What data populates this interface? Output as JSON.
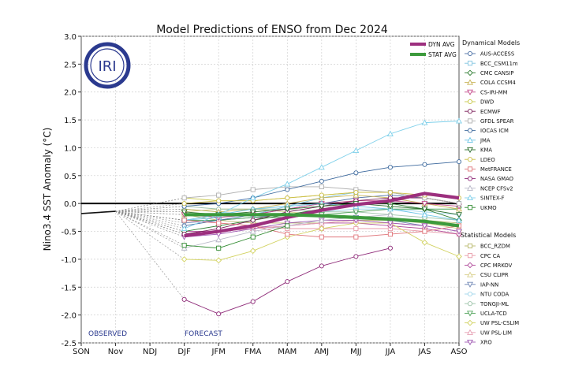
{
  "chart_data": {
    "type": "line",
    "title": "Model Predictions of ENSO from Dec 2024",
    "ylabel": "Nino3.4 SST Anomaly (°C)",
    "xlabel": "",
    "ylim": [
      -2.5,
      3.0
    ],
    "yticks": [
      "-2.5",
      "-2.0",
      "-1.5",
      "-1.0",
      "-0.5",
      "0.0",
      "0.5",
      "1.0",
      "1.5",
      "2.0",
      "2.5",
      "3.0"
    ],
    "categories": [
      "SON",
      "Nov",
      "NDJ",
      "DJF",
      "JFM",
      "FMA",
      "MAM",
      "AMJ",
      "MJJ",
      "JJA",
      "JAS",
      "ASO"
    ],
    "grid": true,
    "observed_label": "OBSERVED",
    "forecast_label": "FORECAST",
    "logo_text": "IRI",
    "observed": [
      -0.18,
      -0.14
    ],
    "avg_series": [
      {
        "name": "DYN AVG",
        "color": "#9c2f7e",
        "values": [
          null,
          null,
          null,
          -0.58,
          -0.5,
          -0.4,
          -0.25,
          -0.12,
          -0.02,
          0.05,
          0.18,
          0.1
        ]
      },
      {
        "name": "STAT AVG",
        "color": "#3c9a3c",
        "values": [
          null,
          null,
          null,
          -0.2,
          -0.2,
          -0.2,
          -0.2,
          -0.22,
          -0.25,
          -0.28,
          -0.32,
          -0.4
        ]
      }
    ],
    "legend_dynamical_title": "Dynamical Models",
    "legend_statistical_title": "Statistical Models",
    "dynamical_series": [
      {
        "name": "AUS-ACCESS",
        "color": "#4a6fa5",
        "marker": "circle",
        "values": [
          null,
          null,
          null,
          -0.4,
          -0.3,
          -0.2,
          -0.1,
          0.0,
          0.1,
          0.15,
          0.1,
          0.0
        ]
      },
      {
        "name": "BCC_CSM11m",
        "color": "#7fc4e0",
        "marker": "square",
        "values": [
          null,
          null,
          null,
          -0.3,
          -0.25,
          -0.2,
          -0.05,
          0.1,
          0.2,
          0.2,
          0.1,
          0.0
        ]
      },
      {
        "name": "CMC CANSIP",
        "color": "#2e7d32",
        "marker": "diamond",
        "values": [
          null,
          null,
          null,
          -0.5,
          -0.4,
          -0.3,
          -0.2,
          -0.1,
          0.0,
          0.0,
          -0.1,
          -0.3
        ]
      },
      {
        "name": "COLA CCSM4",
        "color": "#c9b458",
        "marker": "triangle",
        "values": [
          null,
          null,
          null,
          -0.1,
          -0.15,
          -0.1,
          0.0,
          0.1,
          0.15,
          0.1,
          0.0,
          -0.1
        ]
      },
      {
        "name": "CS-IRI-MM",
        "color": "#c54b8c",
        "marker": "tridown",
        "values": [
          null,
          null,
          null,
          -0.2,
          -0.25,
          -0.2,
          -0.1,
          0.0,
          0.05,
          0.05,
          0.0,
          -0.05
        ]
      },
      {
        "name": "DWD",
        "color": "#c8c84a",
        "marker": "circle",
        "values": [
          null,
          null,
          null,
          0.1,
          0.05,
          0.05,
          0.1,
          0.15,
          0.2,
          0.2,
          0.1,
          0.0
        ]
      },
      {
        "name": "ECMWF",
        "color": "#7b1f5a",
        "marker": "circle",
        "values": [
          null,
          null,
          null,
          -0.55,
          -0.45,
          -0.3,
          -0.15,
          -0.05,
          0.05,
          0.1,
          0.1,
          0.0
        ]
      },
      {
        "name": "GFDL SPEAR",
        "color": "#b0b0b0",
        "marker": "square",
        "values": [
          null,
          null,
          null,
          0.1,
          0.15,
          0.25,
          0.3,
          0.3,
          0.25,
          0.2,
          0.1,
          0.0
        ]
      },
      {
        "name": "IOCAS ICM",
        "color": "#3e6a9e",
        "marker": "circle",
        "values": [
          null,
          null,
          null,
          -0.05,
          0.0,
          0.1,
          0.25,
          0.4,
          0.55,
          0.65,
          0.7,
          0.75
        ]
      },
      {
        "name": "JMA",
        "color": "#6ec6e6",
        "marker": "triangle",
        "values": [
          null,
          null,
          null,
          -0.3,
          -0.2,
          -0.1,
          -0.05,
          0.0,
          -0.05,
          -0.1,
          -0.2,
          -0.3
        ]
      },
      {
        "name": "KMA",
        "color": "#2c6e2c",
        "marker": "tridown",
        "values": [
          null,
          null,
          null,
          -0.15,
          -0.2,
          -0.15,
          -0.1,
          -0.05,
          0.0,
          -0.05,
          -0.1,
          -0.2
        ]
      },
      {
        "name": "LDEO",
        "color": "#cdbf47",
        "marker": "circle",
        "values": [
          null,
          null,
          null,
          0.0,
          0.05,
          0.05,
          0.1,
          0.15,
          0.2,
          0.2,
          0.15,
          0.1
        ]
      },
      {
        "name": "MetFRANCE",
        "color": "#e0787d",
        "marker": "square",
        "values": [
          null,
          null,
          null,
          -0.3,
          -0.35,
          -0.4,
          -0.55,
          -0.6,
          -0.6,
          -0.55,
          -0.5,
          -0.4
        ]
      },
      {
        "name": "NASA GMAO",
        "color": "#8e2a78",
        "marker": "circle",
        "values": [
          null,
          null,
          null,
          -1.72,
          -1.98,
          -1.76,
          -1.4,
          -1.12,
          -0.95,
          -0.8,
          null,
          null
        ]
      },
      {
        "name": "NCEP CFSv2",
        "color": "#b8b8c8",
        "marker": "triangle",
        "values": [
          null,
          null,
          null,
          -0.8,
          -0.65,
          -0.5,
          -0.4,
          -0.3,
          -0.25,
          -0.2,
          null,
          null
        ]
      },
      {
        "name": "SINTEX-F",
        "color": "#7fd0ea",
        "marker": "triangle",
        "values": [
          null,
          null,
          null,
          -0.45,
          -0.2,
          0.1,
          0.35,
          0.65,
          0.95,
          1.25,
          1.45,
          1.48
        ]
      },
      {
        "name": "UKMO",
        "color": "#2f8a2f",
        "marker": "square",
        "values": [
          null,
          null,
          null,
          -0.75,
          -0.8,
          -0.6,
          -0.4,
          null,
          null,
          null,
          null,
          null
        ]
      }
    ],
    "statistical_series": [
      {
        "name": "BCC_RZDM",
        "color": "#b8b86a",
        "marker": "square",
        "values": [
          null,
          null,
          null,
          -0.2,
          -0.3,
          -0.35,
          -0.35,
          -0.35,
          -0.3,
          -0.3,
          -0.3,
          -0.35
        ]
      },
      {
        "name": "CPC CA",
        "color": "#e89aa8",
        "marker": "square",
        "values": [
          null,
          null,
          null,
          -0.3,
          -0.35,
          -0.4,
          -0.45,
          -0.45,
          -0.45,
          -0.45,
          -0.5,
          -0.55
        ]
      },
      {
        "name": "CPC MRKOV",
        "color": "#b04a9a",
        "marker": "diamond",
        "values": [
          null,
          null,
          null,
          -0.5,
          -0.5,
          -0.45,
          -0.4,
          -0.35,
          -0.35,
          -0.4,
          -0.45,
          -0.55
        ]
      },
      {
        "name": "CSU CLIPR",
        "color": "#d8cf8a",
        "marker": "triangle",
        "values": [
          null,
          null,
          null,
          -0.15,
          -0.1,
          -0.1,
          -0.15,
          -0.2,
          -0.25,
          -0.3,
          -0.35,
          -0.45
        ]
      },
      {
        "name": "IAP-NN",
        "color": "#6f86b5",
        "marker": "tridown",
        "values": [
          null,
          null,
          null,
          -0.35,
          -0.3,
          -0.25,
          -0.2,
          -0.2,
          -0.25,
          -0.3,
          -0.4,
          -0.5
        ]
      },
      {
        "name": "NTU CODA",
        "color": "#9fd6ea",
        "marker": "circle",
        "values": [
          null,
          null,
          null,
          -0.1,
          -0.15,
          -0.2,
          -0.2,
          -0.15,
          -0.1,
          -0.1,
          -0.15,
          -0.2
        ]
      },
      {
        "name": "TONGJI-ML",
        "color": "#9cc2a8",
        "marker": "circle",
        "values": [
          null,
          null,
          null,
          -0.05,
          -0.1,
          -0.1,
          -0.1,
          -0.15,
          -0.15,
          -0.2,
          -0.25,
          -0.3
        ]
      },
      {
        "name": "UCLA-TCD",
        "color": "#4fa35a",
        "marker": "tridown",
        "values": [
          null,
          null,
          null,
          -0.3,
          -0.3,
          -0.25,
          -0.25,
          -0.2,
          -0.15,
          -0.1,
          -0.1,
          -0.1
        ]
      },
      {
        "name": "UW PSL-CSLIM",
        "color": "#d2d260",
        "marker": "diamond",
        "values": [
          null,
          null,
          null,
          -1.0,
          -1.02,
          -0.85,
          -0.6,
          -0.45,
          -0.35,
          -0.35,
          -0.7,
          -0.95
        ]
      },
      {
        "name": "UW PSL-LIM",
        "color": "#e6a0b4",
        "marker": "triangle",
        "values": [
          null,
          null,
          null,
          -0.55,
          -0.5,
          -0.45,
          -0.4,
          -0.35,
          -0.3,
          -0.35,
          -0.4,
          -0.5
        ]
      },
      {
        "name": "XRO",
        "color": "#a05ab4",
        "marker": "tridown",
        "values": [
          null,
          null,
          null,
          -0.6,
          -0.55,
          -0.45,
          -0.35,
          -0.3,
          -0.3,
          -0.35,
          -0.4,
          -0.5
        ]
      }
    ]
  }
}
